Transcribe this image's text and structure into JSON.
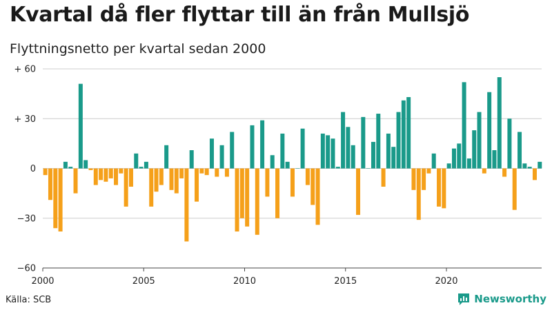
{
  "title": "Kvartal då fler flyttar till än från Mullsjö",
  "subtitle": "Flyttningsnetto per kvartal sedan 2000",
  "source": "Källa: SCB",
  "brand": "Newsworthy",
  "colors": {
    "positive": "#1a9a8a",
    "negative": "#f5a01a",
    "grid": "#cccccc",
    "axis": "#444444"
  },
  "chart_data": {
    "type": "bar",
    "start_year": 2000,
    "periods_per_year": 4,
    "ylim": [
      -60,
      60
    ],
    "y_ticks": [
      {
        "value": 60,
        "label": "+ 60"
      },
      {
        "value": 30,
        "label": "+ 30"
      },
      {
        "value": 0,
        "label": "0"
      },
      {
        "value": -30,
        "label": "−30"
      },
      {
        "value": -60,
        "label": "−60"
      }
    ],
    "x_ticks": [
      "2000",
      "2005",
      "2010",
      "2015",
      "2020"
    ],
    "grid": true,
    "values": [
      -4,
      -19,
      -36,
      -38,
      4,
      1,
      -15,
      51,
      5,
      -1,
      -10,
      -7,
      -8,
      -6,
      -10,
      -3,
      -23,
      -11,
      9,
      1,
      4,
      -23,
      -14,
      -10,
      14,
      -13,
      -15,
      -6,
      -44,
      11,
      -20,
      -3,
      -4,
      18,
      -5,
      14,
      -5,
      22,
      -38,
      -30,
      -35,
      26,
      -40,
      29,
      -17,
      8,
      -30,
      21,
      4,
      -17,
      0,
      24,
      -10,
      -22,
      -34,
      21,
      20,
      18,
      1,
      34,
      25,
      14,
      -28,
      31,
      0,
      16,
      33,
      -11,
      21,
      13,
      34,
      41,
      43,
      -13,
      -31,
      -13,
      -3,
      9,
      -23,
      -24,
      3,
      12,
      15,
      52,
      6,
      23,
      34,
      -3,
      46,
      11,
      55,
      -5,
      30,
      -25,
      22,
      3,
      1,
      -7,
      4
    ]
  }
}
